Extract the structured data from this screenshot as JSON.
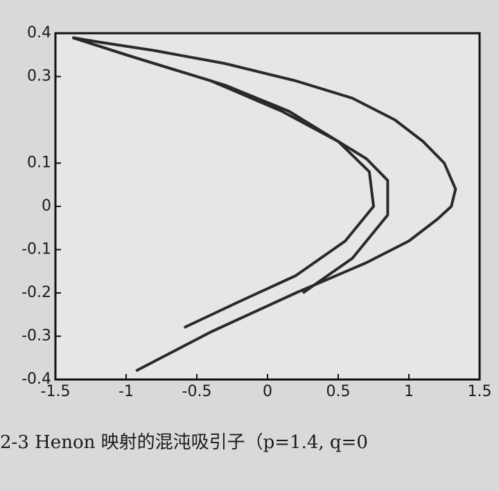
{
  "chart_data": {
    "type": "line",
    "series": [
      {
        "color": "#2a2a2a",
        "x": [
          -0.93,
          -0.4,
          0.2,
          0.7,
          1.0,
          1.2,
          1.3,
          1.33,
          1.25,
          1.1,
          0.9,
          0.6,
          0.2,
          -0.3,
          -0.8,
          -1.2,
          -1.38
        ],
        "values": [
          -0.38,
          -0.29,
          -0.2,
          -0.13,
          -0.08,
          -0.03,
          0.0,
          0.04,
          0.1,
          0.15,
          0.2,
          0.25,
          0.29,
          0.33,
          0.36,
          0.38,
          0.39
        ]
      },
      {
        "color": "#2a2a2a",
        "x": [
          -0.59,
          -0.2,
          0.2,
          0.55,
          0.75,
          0.72,
          0.5,
          0.1,
          -0.4,
          -1.0,
          -1.38
        ],
        "values": [
          -0.28,
          -0.22,
          -0.16,
          -0.08,
          0.0,
          0.08,
          0.15,
          0.22,
          0.29,
          0.35,
          0.39
        ]
      },
      {
        "color": "#2a2a2a",
        "x": [
          0.25,
          0.6,
          0.85,
          0.85,
          0.7,
          0.4,
          0.15,
          -0.3,
          -0.9,
          -1.38
        ],
        "values": [
          -0.2,
          -0.12,
          -0.02,
          0.06,
          0.11,
          0.17,
          0.22,
          0.28,
          0.34,
          0.39
        ]
      }
    ],
    "xlim": [
      -1.5,
      1.5
    ],
    "xticks": [
      -1.5,
      -1,
      -0.5,
      0,
      0.5,
      1,
      1.5
    ],
    "ylim": [
      -0.4,
      0.4
    ],
    "yticks": [
      0.4,
      0.3,
      0.1,
      0,
      -0.1,
      -0.2,
      -0.3,
      -0.4
    ],
    "caption": "2-3   Henon 映射的混沌吸引子（p=1.4, q=0"
  }
}
